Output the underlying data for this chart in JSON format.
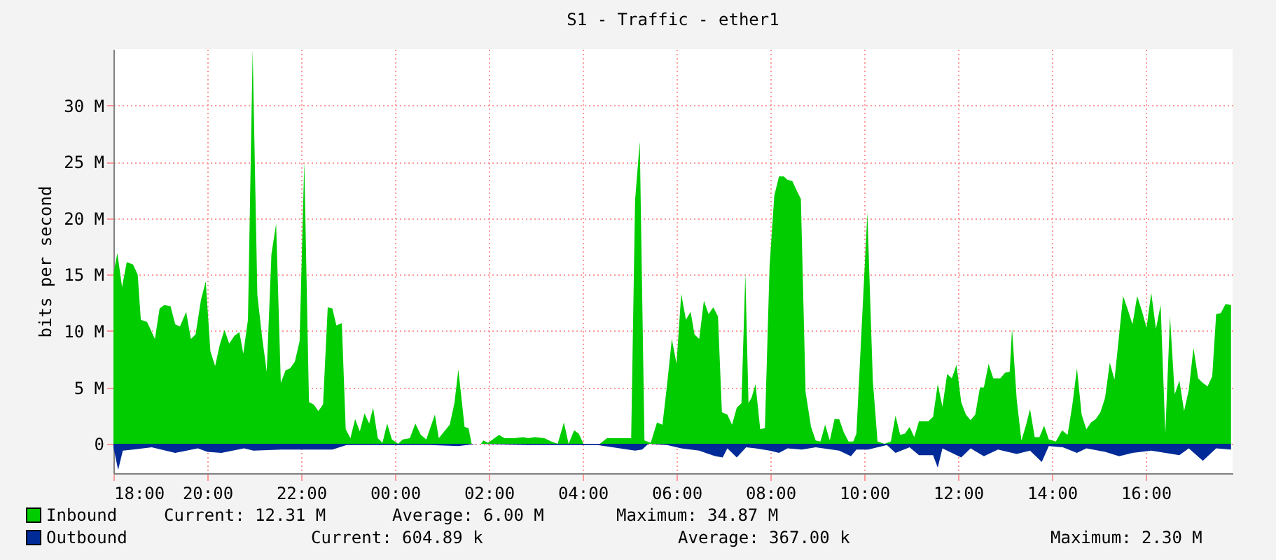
{
  "chart_data": {
    "type": "area",
    "title": "S1 - Traffic - ether1",
    "ylabel": "bits per second",
    "xlim": [
      "2000-01-01T18:00",
      "2000-01-02T17:51"
    ],
    "ylim": [
      -2.6,
      35
    ],
    "xticks": [
      {
        "value": "2000-01-01T18:00",
        "label": "18:00"
      },
      {
        "value": "2000-01-01T20:00",
        "label": "20:00"
      },
      {
        "value": "2000-01-01T22:00",
        "label": "22:00"
      },
      {
        "value": "2000-01-02T00:00",
        "label": "00:00"
      },
      {
        "value": "2000-01-02T02:00",
        "label": "02:00"
      },
      {
        "value": "2000-01-02T04:00",
        "label": "04:00"
      },
      {
        "value": "2000-01-02T06:00",
        "label": "06:00"
      },
      {
        "value": "2000-01-02T08:00",
        "label": "08:00"
      },
      {
        "value": "2000-01-02T10:00",
        "label": "10:00"
      },
      {
        "value": "2000-01-02T12:00",
        "label": "12:00"
      },
      {
        "value": "2000-01-02T14:00",
        "label": "14:00"
      },
      {
        "value": "2000-01-02T16:00",
        "label": "16:00"
      }
    ],
    "yticks": [
      0,
      {
        "value": 5,
        "label": "5 M"
      },
      {
        "value": 10,
        "label": "10 M"
      },
      {
        "value": 15,
        "label": "15 M"
      },
      {
        "value": 20,
        "label": "20 M"
      },
      {
        "value": 25,
        "label": "25 M"
      },
      {
        "value": 30,
        "label": "30 M"
      }
    ],
    "grid": true,
    "legend": "bottom",
    "annotations": [
      "Current: 12.31 M",
      "Average: 6.00 M",
      "Maximum: 34.87 M",
      "Current: 604.89 k",
      "Average: 367.00 k",
      "Maximum: 2.30 M"
    ],
    "series": [
      {
        "name": "Inbound",
        "color": "#00cc00",
        "x": [
          "2000-01-01T18:00",
          "2000-01-01T18:05",
          "2000-01-01T18:11",
          "2000-01-01T18:17",
          "2000-01-01T18:25",
          "2000-01-01T18:31",
          "2000-01-01T18:35",
          "2000-01-01T18:43",
          "2000-01-01T18:49",
          "2000-01-01T18:53",
          "2000-01-01T18:59",
          "2000-01-01T19:05",
          "2000-01-01T19:13",
          "2000-01-01T19:19",
          "2000-01-01T19:25",
          "2000-01-01T19:33",
          "2000-01-01T19:39",
          "2000-01-01T19:45",
          "2000-01-01T19:52",
          "2000-01-01T19:58",
          "2000-01-01T20:04",
          "2000-01-01T20:10",
          "2000-01-01T20:16",
          "2000-01-01T20:22",
          "2000-01-01T20:28",
          "2000-01-01T20:35",
          "2000-01-01T20:41",
          "2000-01-01T20:46",
          "2000-01-01T20:52",
          "2000-01-01T20:58",
          "2000-01-01T21:04",
          "2000-01-01T21:10",
          "2000-01-01T21:16",
          "2000-01-01T21:22",
          "2000-01-01T21:28",
          "2000-01-01T21:34",
          "2000-01-01T21:40",
          "2000-01-01T21:46",
          "2000-01-01T21:52",
          "2000-01-01T21:58",
          "2000-01-01T22:04",
          "2000-01-01T22:10",
          "2000-01-01T22:16",
          "2000-01-01T22:22",
          "2000-01-01T22:28",
          "2000-01-01T22:34",
          "2000-01-01T22:40",
          "2000-01-01T22:45",
          "2000-01-01T22:52",
          "2000-01-01T22:57",
          "2000-01-01T23:03",
          "2000-01-01T23:09",
          "2000-01-01T23:15",
          "2000-01-01T23:21",
          "2000-01-01T23:27",
          "2000-01-01T23:32",
          "2000-01-01T23:38",
          "2000-01-01T23:44",
          "2000-01-01T23:50",
          "2000-01-01T23:56",
          "2000-01-02T00:04",
          "2000-01-02T00:10",
          "2000-01-02T00:19",
          "2000-01-02T00:26",
          "2000-01-02T00:33",
          "2000-01-02T00:40",
          "2000-01-02T00:51",
          "2000-01-02T00:56",
          "2000-01-02T01:03",
          "2000-01-02T01:10",
          "2000-01-02T01:16",
          "2000-01-02T01:21",
          "2000-01-02T01:29",
          "2000-01-02T01:34",
          "2000-01-02T01:38",
          "2000-01-02T01:50",
          "2000-01-02T01:53",
          "2000-01-02T01:59",
          "2000-01-02T02:05",
          "2000-01-02T02:13",
          "2000-01-02T02:20",
          "2000-01-02T02:32",
          "2000-01-02T02:44",
          "2000-01-02T02:50",
          "2000-01-02T02:59",
          "2000-01-02T03:11",
          "2000-01-02T03:20",
          "2000-01-02T03:28",
          "2000-01-02T03:36",
          "2000-01-02T03:42",
          "2000-01-02T03:49",
          "2000-01-02T03:55",
          "2000-01-02T04:01",
          "2000-01-02T04:22",
          "2000-01-02T04:31",
          "2000-01-02T04:49",
          "2000-01-02T05:02",
          "2000-01-02T05:07",
          "2000-01-02T05:13",
          "2000-01-02T05:19",
          "2000-01-02T05:27",
          "2000-01-02T05:35",
          "2000-01-02T05:42",
          "2000-01-02T05:48",
          "2000-01-02T05:54",
          "2000-01-02T06:00",
          "2000-01-02T06:06",
          "2000-01-02T06:12",
          "2000-01-02T06:18",
          "2000-01-02T06:23",
          "2000-01-02T06:29",
          "2000-01-02T06:35",
          "2000-01-02T06:41",
          "2000-01-02T06:47",
          "2000-01-02T06:53",
          "2000-01-02T06:58",
          "2000-01-02T07:05",
          "2000-01-02T07:11",
          "2000-01-02T07:17",
          "2000-01-02T07:23",
          "2000-01-02T07:28",
          "2000-01-02T07:32",
          "2000-01-02T07:36",
          "2000-01-02T07:41",
          "2000-01-02T07:47",
          "2000-01-02T07:53",
          "2000-01-02T07:59",
          "2000-01-02T08:05",
          "2000-01-02T08:11",
          "2000-01-02T08:17",
          "2000-01-02T08:22",
          "2000-01-02T08:28",
          "2000-01-02T08:34",
          "2000-01-02T08:39",
          "2000-01-02T08:45",
          "2000-01-02T08:52",
          "2000-01-02T08:58",
          "2000-01-02T09:04",
          "2000-01-02T09:10",
          "2000-01-02T09:16",
          "2000-01-02T09:22",
          "2000-01-02T09:28",
          "2000-01-02T09:34",
          "2000-01-02T09:40",
          "2000-01-02T09:46",
          "2000-01-02T09:50",
          "2000-01-02T10:04",
          "2000-01-02T10:11",
          "2000-01-02T10:17",
          "2000-01-02T10:26",
          "2000-01-02T10:34",
          "2000-01-02T10:40",
          "2000-01-02T10:46",
          "2000-01-02T10:52",
          "2000-01-02T10:58",
          "2000-01-02T11:04",
          "2000-01-02T11:10",
          "2000-01-02T11:22",
          "2000-01-02T11:28",
          "2000-01-02T11:34",
          "2000-01-02T11:40",
          "2000-01-02T11:46",
          "2000-01-02T11:52",
          "2000-01-02T11:58",
          "2000-01-02T12:04",
          "2000-01-02T12:10",
          "2000-01-02T12:16",
          "2000-01-02T12:22",
          "2000-01-02T12:28",
          "2000-01-02T12:33",
          "2000-01-02T12:39",
          "2000-01-02T12:45",
          "2000-01-02T12:54",
          "2000-01-02T13:00",
          "2000-01-02T13:06",
          "2000-01-02T13:09",
          "2000-01-02T13:15",
          "2000-01-02T13:21",
          "2000-01-02T13:27",
          "2000-01-02T13:32",
          "2000-01-02T13:38",
          "2000-01-02T13:44",
          "2000-01-02T13:50",
          "2000-01-02T13:56",
          "2000-01-02T14:05",
          "2000-01-02T14:13",
          "2000-01-02T14:20",
          "2000-01-02T14:26",
          "2000-01-02T14:32",
          "2000-01-02T14:38",
          "2000-01-02T14:44",
          "2000-01-02T14:50",
          "2000-01-02T14:56",
          "2000-01-02T15:02",
          "2000-01-02T15:08",
          "2000-01-02T15:14",
          "2000-01-02T15:20",
          "2000-01-02T15:26",
          "2000-01-02T15:31",
          "2000-01-02T15:37",
          "2000-01-02T15:43",
          "2000-01-02T15:49",
          "2000-01-02T15:55",
          "2000-01-02T16:01",
          "2000-01-02T16:07",
          "2000-01-02T16:13",
          "2000-01-02T16:19",
          "2000-01-02T16:25",
          "2000-01-02T16:31",
          "2000-01-02T16:37",
          "2000-01-02T16:43",
          "2000-01-02T16:49",
          "2000-01-02T16:55",
          "2000-01-02T17:01",
          "2000-01-02T17:07",
          "2000-01-02T17:13",
          "2000-01-02T17:19",
          "2000-01-02T17:25",
          "2000-01-02T17:30",
          "2000-01-02T17:36",
          "2000-01-02T17:42",
          "2000-01-02T17:49"
        ],
        "values": [
          15.1,
          16.9,
          13.9,
          16.1,
          15.9,
          15.0,
          11.0,
          10.8,
          9.9,
          9.3,
          12.0,
          12.3,
          12.2,
          10.6,
          10.4,
          11.7,
          9.3,
          9.7,
          12.8,
          14.4,
          8.2,
          6.9,
          8.8,
          10.1,
          8.9,
          9.6,
          9.9,
          8.0,
          11.0,
          34.9,
          13.2,
          9.5,
          6.4,
          16.8,
          19.5,
          5.4,
          6.5,
          6.7,
          7.3,
          9.1,
          25.0,
          3.7,
          3.5,
          2.9,
          3.5,
          12.1,
          12.0,
          10.5,
          10.7,
          1.3,
          0.5,
          2.2,
          1.1,
          2.7,
          1.8,
          3.2,
          0.5,
          0.1,
          1.8,
          0.4,
          0,
          0.4,
          0.5,
          1.8,
          0.8,
          0.4,
          2.6,
          0.5,
          1.1,
          1.7,
          3.6,
          6.6,
          1.5,
          1.4,
          0,
          0,
          0.3,
          0.1,
          0.4,
          0.8,
          0.5,
          0.5,
          0.6,
          0.5,
          0.6,
          0.5,
          0.2,
          0,
          1.9,
          0,
          1.2,
          0.9,
          0,
          0,
          0.5,
          0.5,
          0.5,
          21.6,
          26.8,
          0.3,
          0.1,
          1.9,
          1.7,
          5.3,
          9.3,
          7.1,
          13.3,
          11.0,
          11.7,
          9.7,
          9.3,
          12.7,
          11.5,
          12.1,
          11.3,
          2.8,
          2.6,
          1.7,
          3.2,
          3.6,
          15.1,
          3.6,
          4.1,
          5.3,
          1.3,
          1.4,
          15.8,
          22.0,
          23.7,
          23.7,
          23.4,
          23.3,
          22.4,
          21.7,
          4.6,
          1.5,
          0.3,
          0.2,
          1.7,
          0.3,
          2.2,
          2.2,
          1.0,
          0.2,
          0.2,
          0.9,
          20.5,
          5.6,
          0.2,
          0,
          0.2,
          2.5,
          0.8,
          0.9,
          1.5,
          0.6,
          2.0,
          2.0,
          2.4,
          5.3,
          3.3,
          6.2,
          5.8,
          7.0,
          3.7,
          2.6,
          2.1,
          2.6,
          5.0,
          5.0,
          7.1,
          5.8,
          5.8,
          6.3,
          6.4,
          10.2,
          3.9,
          0.3,
          1.7,
          3.1,
          0.6,
          0.6,
          1.6,
          0.4,
          0.2,
          1.2,
          0.8,
          3.4,
          6.7,
          2.6,
          1.3,
          1.9,
          2.2,
          2.8,
          4.1,
          7.2,
          5.7,
          9.7,
          13.1,
          11.9,
          10.6,
          13.1,
          11.8,
          10.3,
          13.4,
          10.2,
          12.3,
          0.9,
          11.3,
          4.4,
          5.6,
          2.9,
          4.8,
          8.5,
          5.8,
          5.4,
          5.1,
          6.0,
          11.5,
          11.6,
          12.4,
          12.3
        ]
      },
      {
        "name": "Outbound",
        "color": "#002a97",
        "x": [
          "2000-01-01T18:00",
          "2000-01-01T18:06",
          "2000-01-01T18:12",
          "2000-01-01T18:25",
          "2000-01-01T18:49",
          "2000-01-01T19:19",
          "2000-01-01T19:48",
          "2000-01-01T20:00",
          "2000-01-01T20:18",
          "2000-01-01T20:47",
          "2000-01-01T20:59",
          "2000-01-01T21:35",
          "2000-01-01T22:05",
          "2000-01-01T22:40",
          "2000-01-01T22:58",
          "2000-01-01T23:46",
          "2000-01-02T00:45",
          "2000-01-02T01:21",
          "2000-01-02T01:44",
          "2000-01-02T02:50",
          "2000-01-02T03:49",
          "2000-01-02T04:19",
          "2000-01-02T05:07",
          "2000-01-02T05:16",
          "2000-01-02T05:24",
          "2000-01-02T05:48",
          "2000-01-02T06:06",
          "2000-01-02T06:29",
          "2000-01-02T06:41",
          "2000-01-02T06:50",
          "2000-01-02T06:59",
          "2000-01-02T07:05",
          "2000-01-02T07:17",
          "2000-01-02T07:29",
          "2000-01-02T07:41",
          "2000-01-02T07:59",
          "2000-01-02T08:11",
          "2000-01-02T08:22",
          "2000-01-02T08:40",
          "2000-01-02T08:58",
          "2000-01-02T09:28",
          "2000-01-02T09:43",
          "2000-01-02T09:50",
          "2000-01-02T10:05",
          "2000-01-02T10:29",
          "2000-01-02T10:40",
          "2000-01-02T10:58",
          "2000-01-02T11:10",
          "2000-01-02T11:28",
          "2000-01-02T11:34",
          "2000-01-02T11:40",
          "2000-01-02T12:04",
          "2000-01-02T12:16",
          "2000-01-02T12:33",
          "2000-01-02T12:51",
          "2000-01-02T13:15",
          "2000-01-02T13:32",
          "2000-01-02T13:47",
          "2000-01-02T13:56",
          "2000-01-02T14:14",
          "2000-01-02T14:32",
          "2000-01-02T14:44",
          "2000-01-02T15:08",
          "2000-01-02T15:26",
          "2000-01-02T15:43",
          "2000-01-02T16:07",
          "2000-01-02T16:43",
          "2000-01-02T16:55",
          "2000-01-02T17:13",
          "2000-01-02T17:30",
          "2000-01-02T17:49"
        ],
        "values": [
          -0.3,
          -2.3,
          -0.6,
          -0.5,
          -0.3,
          -0.8,
          -0.4,
          -0.7,
          -0.8,
          -0.4,
          -0.6,
          -0.5,
          -0.5,
          -0.5,
          -0.1,
          -0.1,
          -0.1,
          -0.2,
          0,
          -0.1,
          -0.1,
          -0.1,
          -0.6,
          -0.5,
          0,
          -0.1,
          -0.4,
          -0.6,
          -0.9,
          -1.1,
          -1.2,
          -0.4,
          -1.2,
          -0.3,
          -0.4,
          -0.6,
          -0.8,
          -0.4,
          -0.5,
          -0.3,
          -0.6,
          -1.1,
          -0.5,
          -0.5,
          -0.1,
          -0.8,
          -0.3,
          -1.0,
          -1.0,
          -2.1,
          -0.4,
          -1.2,
          -0.4,
          -1.1,
          -0.5,
          -0.9,
          -0.6,
          -1.6,
          -0.2,
          -0.3,
          -0.8,
          -0.4,
          -0.7,
          -1.1,
          -0.8,
          -0.6,
          -1.0,
          -0.4,
          -1.5,
          -0.4,
          -0.5
        ]
      }
    ]
  }
}
